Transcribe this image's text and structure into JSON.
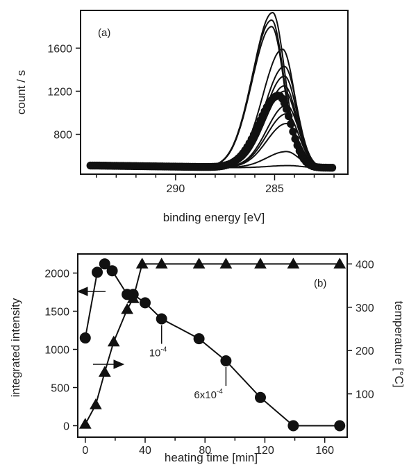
{
  "chart_data": [
    {
      "type": "line",
      "panel_label": "(a)",
      "xlabel": "binding energy [eV]",
      "ylabel": "count / s",
      "x_reversed": true,
      "xlim": [
        294.8,
        281.3
      ],
      "ylim": [
        430,
        1950
      ],
      "xticks": [
        290,
        285
      ],
      "xtick_labels": [
        "290",
        "285"
      ],
      "minor_xticks": [
        294,
        293,
        292,
        291,
        289,
        288,
        287,
        286,
        284,
        283,
        282
      ],
      "yticks": [
        800,
        1200,
        1600
      ],
      "ytick_labels": [
        "800",
        "1200",
        "1600"
      ],
      "baseline": 490,
      "peaks": [
        {
          "center": 285.1,
          "height": 1930
        },
        {
          "center": 285.15,
          "height": 1860
        },
        {
          "center": 285.15,
          "height": 1800
        },
        {
          "center": 284.6,
          "height": 1590
        },
        {
          "center": 284.5,
          "height": 1430
        },
        {
          "center": 284.5,
          "height": 1340
        },
        {
          "center": 284.5,
          "height": 1250
        },
        {
          "center": 284.5,
          "height": 1200
        },
        {
          "center": 284.8,
          "height": 1160
        },
        {
          "center": 284.4,
          "height": 1070
        },
        {
          "center": 284.4,
          "height": 990
        },
        {
          "center": 284.4,
          "height": 900
        },
        {
          "center": 284.4,
          "height": 640
        },
        {
          "center": 284.3,
          "height": 510
        }
      ],
      "marked_curve_index": 8
    },
    {
      "type": "scatter",
      "panel_label": "(b)",
      "xlabel": "heating time [min]",
      "ylabel_left": "integrated intensity",
      "ylabel_right": "temperature [°C]",
      "xlim": [
        -5,
        175
      ],
      "ylim_left": [
        -150,
        2250
      ],
      "ylim_right": [
        0,
        423
      ],
      "xticks": [
        0,
        40,
        80,
        120,
        160
      ],
      "xtick_labels": [
        "0",
        "40",
        "80",
        "120",
        "160"
      ],
      "yticks_left": [
        0,
        500,
        1000,
        1500,
        2000
      ],
      "ytick_labels_left": [
        "0",
        "500",
        "1000",
        "1500",
        "2000"
      ],
      "yticks_right": [
        100,
        200,
        300,
        400
      ],
      "ytick_labels_right": [
        "100",
        "200",
        "300",
        "400"
      ],
      "series": [
        {
          "marker": "circle",
          "axis": "left",
          "x": [
            0,
            8,
            13,
            18,
            28,
            32,
            40,
            51,
            76,
            94,
            117,
            139,
            170
          ],
          "y": [
            1150,
            2010,
            2120,
            2030,
            1720,
            1720,
            1610,
            1400,
            1140,
            850,
            370,
            0,
            0
          ]
        },
        {
          "marker": "triangle",
          "axis": "right",
          "x": [
            0,
            7,
            13,
            19,
            28,
            32,
            38,
            51,
            76,
            94,
            117,
            139,
            170
          ],
          "y": [
            30,
            75,
            150,
            220,
            295,
            320,
            400,
            400,
            400,
            400,
            400,
            400,
            400
          ]
        }
      ],
      "annotations": [
        {
          "base": "10",
          "exp": "-4",
          "x": 51,
          "y": 1400
        },
        {
          "base": "6x10",
          "exp": "-4",
          "x": 94,
          "y": 850
        }
      ]
    }
  ]
}
